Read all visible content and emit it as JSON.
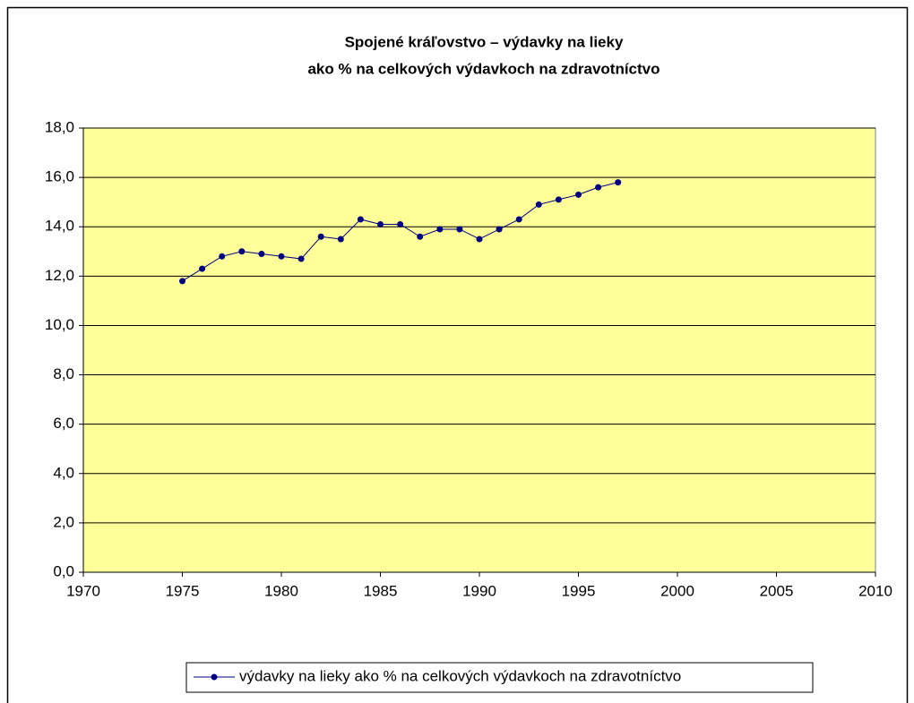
{
  "chart_data": {
    "type": "line",
    "title": [
      "Spojené kráľovstvo – výdavky na lieky",
      "ako % na celkových výdavkoch na zdravotníctvo"
    ],
    "x": [
      1975,
      1976,
      1977,
      1978,
      1979,
      1980,
      1981,
      1982,
      1983,
      1984,
      1985,
      1986,
      1987,
      1988,
      1989,
      1990,
      1991,
      1992,
      1993,
      1994,
      1995,
      1996,
      1997
    ],
    "series": [
      {
        "name": "výdavky na lieky ako % na celkových výdavkoch na zdravotníctvo",
        "color": "#000080",
        "values": [
          11.8,
          12.3,
          12.8,
          13.0,
          12.9,
          12.8,
          12.7,
          13.6,
          13.5,
          14.3,
          14.1,
          14.1,
          13.6,
          13.9,
          13.9,
          13.5,
          13.9,
          14.3,
          14.9,
          15.1,
          15.3,
          15.6,
          15.8
        ]
      }
    ],
    "xlim": [
      1970,
      2010
    ],
    "xticks": [
      1970,
      1975,
      1980,
      1985,
      1990,
      1995,
      2000,
      2005,
      2010
    ],
    "ylim": [
      0,
      18
    ],
    "yticks": [
      {
        "value": 0,
        "label": "0,0"
      },
      {
        "value": 2,
        "label": "2,0"
      },
      {
        "value": 4,
        "label": "4,0"
      },
      {
        "value": 6,
        "label": "6,0"
      },
      {
        "value": 8,
        "label": "8,0"
      },
      {
        "value": 10,
        "label": "10,0"
      },
      {
        "value": 12,
        "label": "12,0"
      },
      {
        "value": 14,
        "label": "14,0"
      },
      {
        "value": 16,
        "label": "16,0"
      },
      {
        "value": 18,
        "label": "18,0"
      }
    ],
    "grid": true,
    "plot_background": "#ffff99",
    "legend": "bottom"
  }
}
